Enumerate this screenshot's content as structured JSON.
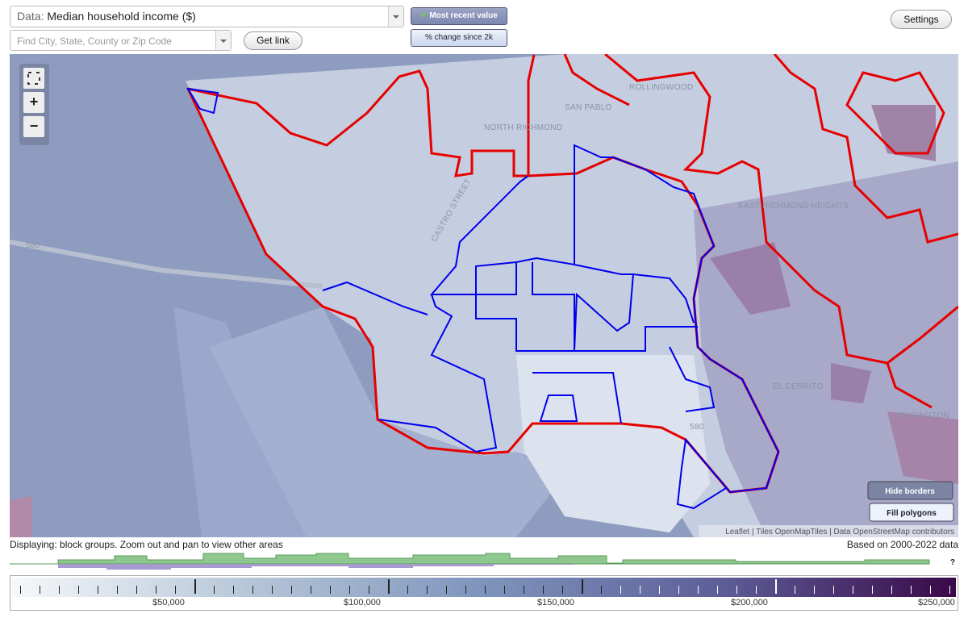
{
  "toolbar": {
    "data_label": "Data:",
    "data_value": "Median household income ($)",
    "search_placeholder": "Find City, State, County or Zip Code",
    "get_link": "Get link",
    "most_recent": "Most recent value",
    "change": "% change since 2k",
    "settings": "Settings"
  },
  "map": {
    "controls": [
      "+",
      "−"
    ],
    "place_labels": [
      "ROLLINGWOOD",
      "SAN PABLO",
      "NORTH RICHMOND",
      "EAST RICHMOND HEIGHTS",
      "EL CERRITO",
      "KENSINGTON"
    ],
    "road_labels": [
      "CASTRO STREET",
      "580",
      "580"
    ],
    "buttons": [
      "Hide borders",
      "Fill polygons"
    ],
    "attribution": "Leaflet | Tiles OpenMapTiles | Data OpenStreetMap contributors"
  },
  "status": {
    "displaying": "Displaying: block groups. Zoom out and pan to view other areas",
    "based_on": "Based on 2000-2022 data"
  },
  "legend": {
    "labels": [
      "$50,000",
      "$100,000",
      "$150,000",
      "$200,000",
      "$250,000"
    ],
    "unknown": "?"
  }
}
